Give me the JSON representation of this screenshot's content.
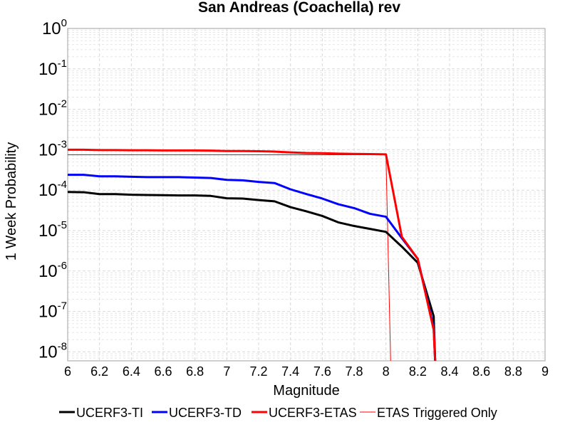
{
  "chart_data": {
    "type": "line",
    "title": "San Andreas (Coachella) rev",
    "xlabel": "Magnitude",
    "ylabel": "1 Week Probability",
    "xlim": [
      6,
      9
    ],
    "ylim": [
      6e-09,
      1
    ],
    "yscale": "log",
    "grid": true,
    "legend_position": "bottom",
    "xticks": [
      "6",
      "6.2",
      "6.4",
      "6.6",
      "6.8",
      "7",
      "7.2",
      "7.4",
      "7.6",
      "7.8",
      "8",
      "8.2",
      "8.4",
      "8.6",
      "8.8",
      "9"
    ],
    "yticks": [
      {
        "base": "10",
        "exp": "0",
        "value": 1
      },
      {
        "base": "10",
        "exp": "-1",
        "value": 0.1
      },
      {
        "base": "10",
        "exp": "-2",
        "value": 0.01
      },
      {
        "base": "10",
        "exp": "-3",
        "value": 0.001
      },
      {
        "base": "10",
        "exp": "-4",
        "value": 0.0001
      },
      {
        "base": "10",
        "exp": "-5",
        "value": 1e-05
      },
      {
        "base": "10",
        "exp": "-6",
        "value": 1e-06
      },
      {
        "base": "10",
        "exp": "-7",
        "value": 1e-07
      },
      {
        "base": "10",
        "exp": "-8",
        "value": 1e-08
      }
    ],
    "series": [
      {
        "name": "UCERF3-TI",
        "color": "#000000",
        "width": 3,
        "points": [
          [
            6.0,
            9e-05
          ],
          [
            6.1,
            8.9e-05
          ],
          [
            6.2,
            8e-05
          ],
          [
            6.3,
            8e-05
          ],
          [
            6.4,
            7.7e-05
          ],
          [
            6.5,
            7.6e-05
          ],
          [
            6.6,
            7.5e-05
          ],
          [
            6.7,
            7.4e-05
          ],
          [
            6.8,
            7.4e-05
          ],
          [
            6.9,
            7.2e-05
          ],
          [
            7.0,
            6.3e-05
          ],
          [
            7.1,
            6.2e-05
          ],
          [
            7.2,
            5.7e-05
          ],
          [
            7.3,
            5.3e-05
          ],
          [
            7.4,
            3.8e-05
          ],
          [
            7.5,
            3e-05
          ],
          [
            7.6,
            2.3e-05
          ],
          [
            7.7,
            1.6e-05
          ],
          [
            7.8,
            1.3e-05
          ],
          [
            7.9,
            1.1e-05
          ],
          [
            8.0,
            9.3e-06
          ],
          [
            8.1,
            4e-06
          ],
          [
            8.2,
            1.6e-06
          ],
          [
            8.3,
            7.6e-08
          ],
          [
            8.31,
            5e-09
          ]
        ]
      },
      {
        "name": "UCERF3-TD",
        "color": "#0000ff",
        "width": 3,
        "points": [
          [
            6.0,
            0.00024
          ],
          [
            6.1,
            0.00024
          ],
          [
            6.2,
            0.00022
          ],
          [
            6.3,
            0.00022
          ],
          [
            6.4,
            0.000215
          ],
          [
            6.5,
            0.00021
          ],
          [
            6.6,
            0.00021
          ],
          [
            6.7,
            0.00021
          ],
          [
            6.8,
            0.000205
          ],
          [
            6.9,
            0.0002
          ],
          [
            7.0,
            0.00018
          ],
          [
            7.1,
            0.000175
          ],
          [
            7.2,
            0.00016
          ],
          [
            7.3,
            0.00015
          ],
          [
            7.4,
            0.000105
          ],
          [
            7.5,
            8e-05
          ],
          [
            7.6,
            6.2e-05
          ],
          [
            7.7,
            4.5e-05
          ],
          [
            7.8,
            3.6e-05
          ],
          [
            7.9,
            2.6e-05
          ],
          [
            8.0,
            2.2e-05
          ],
          [
            8.1,
            6.5e-06
          ],
          [
            8.2,
            2e-06
          ],
          [
            8.3,
            4e-08
          ],
          [
            8.31,
            5e-09
          ]
        ]
      },
      {
        "name": "UCERF3-ETAS",
        "color": "#ff0000",
        "width": 3,
        "points": [
          [
            6.0,
            0.001
          ],
          [
            6.1,
            0.001
          ],
          [
            6.2,
            0.00098
          ],
          [
            6.3,
            0.00098
          ],
          [
            6.4,
            0.00097
          ],
          [
            6.5,
            0.00097
          ],
          [
            6.6,
            0.00096
          ],
          [
            6.7,
            0.00096
          ],
          [
            6.8,
            0.00096
          ],
          [
            6.9,
            0.00095
          ],
          [
            7.0,
            0.00093
          ],
          [
            7.1,
            0.00093
          ],
          [
            7.2,
            0.00092
          ],
          [
            7.3,
            0.0009
          ],
          [
            7.4,
            0.00086
          ],
          [
            7.5,
            0.00083
          ],
          [
            7.6,
            0.00082
          ],
          [
            7.7,
            0.0008
          ],
          [
            7.8,
            0.00079
          ],
          [
            7.9,
            0.00078
          ],
          [
            8.0,
            0.00077
          ],
          [
            8.1,
            7e-06
          ],
          [
            8.2,
            2e-06
          ],
          [
            8.3,
            3.5e-08
          ],
          [
            8.31,
            5e-09
          ]
        ]
      },
      {
        "name": "ETAS Triggered Only",
        "color": "#ff0000",
        "width": 1,
        "points": [
          [
            6.0,
            0.00075
          ],
          [
            6.5,
            0.00075
          ],
          [
            7.0,
            0.00075
          ],
          [
            7.5,
            0.00075
          ],
          [
            8.0,
            0.00075
          ],
          [
            8.03,
            5e-09
          ]
        ]
      }
    ]
  }
}
